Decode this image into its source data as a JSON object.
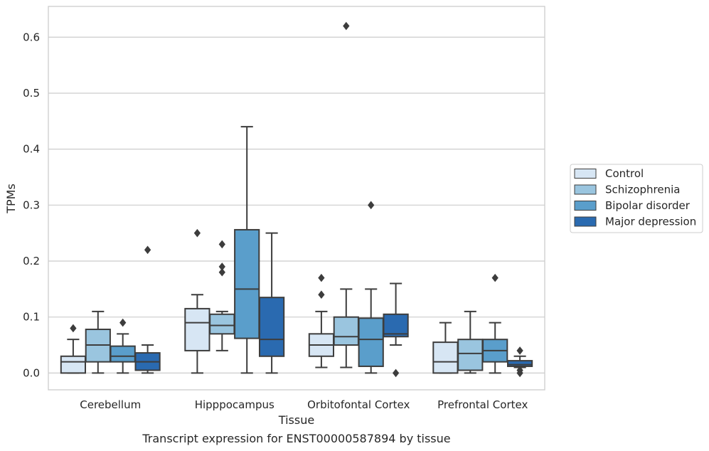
{
  "chart_data": {
    "type": "box",
    "title": "",
    "caption": "Transcript expression for ENST00000587894 by tissue",
    "xlabel": "Tissue",
    "ylabel": "TPMs",
    "ylim": [
      -0.03,
      0.655
    ],
    "yticks": [
      0.0,
      0.1,
      0.2,
      0.3,
      0.4,
      0.5,
      0.6
    ],
    "ytick_labels": [
      "0.0",
      "0.1",
      "0.2",
      "0.3",
      "0.4",
      "0.5",
      "0.6"
    ],
    "grid": "horizontal",
    "legend_position": "right",
    "categories": [
      "Cerebellum",
      "Hipppocampus",
      "Orbitofontal Cortex",
      "Prefrontal Cortex"
    ],
    "series": [
      {
        "name": "Control",
        "color": "#d7e6f4",
        "boxes": [
          {
            "whislo": 0.0,
            "q1": 0.0,
            "med": 0.02,
            "q3": 0.03,
            "whishi": 0.06,
            "fliers": [
              0.08
            ]
          },
          {
            "whislo": 0.0,
            "q1": 0.04,
            "med": 0.09,
            "q3": 0.115,
            "whishi": 0.14,
            "fliers": [
              0.25
            ]
          },
          {
            "whislo": 0.01,
            "q1": 0.03,
            "med": 0.05,
            "q3": 0.07,
            "whishi": 0.11,
            "fliers": [
              0.14,
              0.17
            ]
          },
          {
            "whislo": 0.0,
            "q1": 0.0,
            "med": 0.02,
            "q3": 0.055,
            "whishi": 0.09,
            "fliers": []
          }
        ]
      },
      {
        "name": "Schizophrenia",
        "color": "#9ac5df",
        "boxes": [
          {
            "whislo": 0.0,
            "q1": 0.02,
            "med": 0.05,
            "q3": 0.078,
            "whishi": 0.11,
            "fliers": []
          },
          {
            "whislo": 0.04,
            "q1": 0.07,
            "med": 0.085,
            "q3": 0.105,
            "whishi": 0.11,
            "fliers": [
              0.18,
              0.19,
              0.23
            ]
          },
          {
            "whislo": 0.01,
            "q1": 0.05,
            "med": 0.065,
            "q3": 0.1,
            "whishi": 0.15,
            "fliers": [
              0.62
            ]
          },
          {
            "whislo": 0.0,
            "q1": 0.005,
            "med": 0.035,
            "q3": 0.06,
            "whishi": 0.11,
            "fliers": []
          }
        ]
      },
      {
        "name": "Bipolar disorder",
        "color": "#5a9ecb",
        "boxes": [
          {
            "whislo": 0.0,
            "q1": 0.02,
            "med": 0.03,
            "q3": 0.048,
            "whishi": 0.07,
            "fliers": [
              0.09
            ]
          },
          {
            "whislo": 0.0,
            "q1": 0.062,
            "med": 0.15,
            "q3": 0.256,
            "whishi": 0.44,
            "fliers": []
          },
          {
            "whislo": 0.0,
            "q1": 0.012,
            "med": 0.06,
            "q3": 0.098,
            "whishi": 0.15,
            "fliers": [
              0.3
            ]
          },
          {
            "whislo": 0.0,
            "q1": 0.02,
            "med": 0.04,
            "q3": 0.06,
            "whishi": 0.09,
            "fliers": [
              0.17
            ]
          }
        ]
      },
      {
        "name": "Major depression",
        "color": "#2a6ab0",
        "boxes": [
          {
            "whislo": 0.0,
            "q1": 0.005,
            "med": 0.02,
            "q3": 0.036,
            "whishi": 0.05,
            "fliers": [
              0.22
            ]
          },
          {
            "whislo": 0.0,
            "q1": 0.03,
            "med": 0.06,
            "q3": 0.135,
            "whishi": 0.25,
            "fliers": []
          },
          {
            "whislo": 0.05,
            "q1": 0.065,
            "med": 0.07,
            "q3": 0.105,
            "whishi": 0.16,
            "fliers": [
              0.0
            ]
          },
          {
            "whislo": 0.01,
            "q1": 0.012,
            "med": 0.015,
            "q3": 0.022,
            "whishi": 0.03,
            "fliers": [
              0.0,
              0.005,
              0.04
            ]
          }
        ]
      }
    ]
  }
}
